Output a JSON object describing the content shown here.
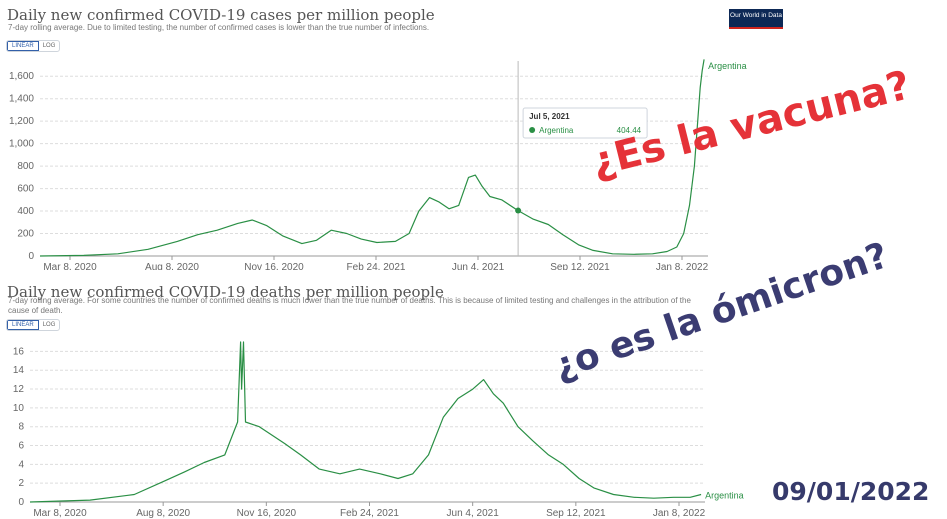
{
  "cases": {
    "title": "Daily new confirmed COVID-19 cases per million people",
    "subtitle": "7-day rolling average. Due to limited testing, the number of confirmed cases is lower than the true number of infections.",
    "scale": {
      "linear": "LINEAR",
      "log": "LOG",
      "active": "linear"
    },
    "logo": "Our World in Data",
    "series_label": "Argentina",
    "tooltip": {
      "date": "Jul 5, 2021",
      "entity": "Argentina",
      "value": "404.44"
    },
    "colors": {
      "line": "#2a8f45",
      "grid": "#dddddd",
      "axis_text": "#666666"
    }
  },
  "deaths": {
    "title": "Daily new confirmed COVID-19 deaths per million people",
    "subtitle": "7-day rolling average. For some countries the number of confirmed deaths is much lower than the true number of deaths. This is because of limited testing and challenges in the attribution of the cause of death.",
    "scale": {
      "linear": "LINEAR",
      "log": "LOG",
      "active": "linear"
    },
    "series_label": "Argentina",
    "colors": {
      "line": "#2a8f45",
      "grid": "#dddddd",
      "axis_text": "#666666"
    }
  },
  "annotations": {
    "vacuna": "¿Es la vacuna?",
    "omicron": "¿o es la ómicron?",
    "date": "09/01/2022"
  },
  "chart_data": [
    {
      "type": "line",
      "title": "Daily new confirmed COVID-19 cases per million people",
      "x_tick_labels": [
        "Mar 8, 2020",
        "Aug 8, 2020",
        "Nov 16, 2020",
        "Feb 24, 2021",
        "Jun 4, 2021",
        "Sep 12, 2021",
        "Jan 8, 2022"
      ],
      "y_ticks": [
        0,
        200,
        400,
        600,
        800,
        1000,
        1200,
        1400,
        1600
      ],
      "y_tick_labels": [
        "0",
        "200",
        "400",
        "600",
        "800",
        "1,000",
        "1,200",
        "1,400",
        "1,600"
      ],
      "ylim": [
        0,
        1700
      ],
      "xlim": [
        "2020-03-01",
        "2022-01-16"
      ],
      "grid": true,
      "series": [
        {
          "name": "Argentina",
          "x": [
            "2020-03-01",
            "2020-04-15",
            "2020-05-20",
            "2020-06-20",
            "2020-07-20",
            "2020-08-10",
            "2020-08-30",
            "2020-09-20",
            "2020-10-05",
            "2020-10-20",
            "2020-11-05",
            "2020-11-25",
            "2020-12-10",
            "2020-12-25",
            "2021-01-10",
            "2021-01-25",
            "2021-02-10",
            "2021-03-01",
            "2021-03-15",
            "2021-03-25",
            "2021-04-05",
            "2021-04-15",
            "2021-04-25",
            "2021-05-05",
            "2021-05-15",
            "2021-05-22",
            "2021-05-29",
            "2021-06-06",
            "2021-06-18",
            "2021-07-05",
            "2021-07-20",
            "2021-08-05",
            "2021-08-20",
            "2021-09-05",
            "2021-09-20",
            "2021-10-10",
            "2021-11-01",
            "2021-11-20",
            "2021-12-05",
            "2021-12-15",
            "2021-12-22",
            "2021-12-28",
            "2022-01-02",
            "2022-01-05",
            "2022-01-08",
            "2022-01-10",
            "2022-01-12"
          ],
          "y": [
            0,
            5,
            20,
            60,
            130,
            190,
            230,
            290,
            320,
            270,
            180,
            110,
            140,
            230,
            200,
            150,
            120,
            130,
            200,
            400,
            520,
            480,
            420,
            450,
            700,
            720,
            620,
            530,
            500,
            404,
            330,
            280,
            190,
            100,
            50,
            20,
            15,
            20,
            40,
            80,
            200,
            450,
            800,
            1150,
            1500,
            1650,
            1750
          ]
        }
      ]
    },
    {
      "type": "line",
      "title": "Daily new confirmed COVID-19 deaths per million people",
      "x_tick_labels": [
        "Mar 8, 2020",
        "Aug 8, 2020",
        "Nov 16, 2020",
        "Feb 24, 2021",
        "Jun 4, 2021",
        "Sep 12, 2021",
        "Jan 8, 2022"
      ],
      "y_ticks": [
        0,
        2,
        4,
        6,
        8,
        10,
        12,
        14,
        16
      ],
      "y_tick_labels": [
        "0",
        "2",
        "4",
        "6",
        "8",
        "10",
        "12",
        "14",
        "16"
      ],
      "ylim": [
        0,
        17
      ],
      "xlim": [
        "2020-03-01",
        "2022-01-16"
      ],
      "grid": true,
      "series": [
        {
          "name": "Argentina",
          "x": [
            "2020-03-01",
            "2020-05-01",
            "2020-06-15",
            "2020-07-15",
            "2020-08-05",
            "2020-08-25",
            "2020-09-15",
            "2020-09-28",
            "2020-10-01",
            "2020-10-02",
            "2020-10-04",
            "2020-10-06",
            "2020-10-20",
            "2020-11-15",
            "2020-12-01",
            "2020-12-20",
            "2021-01-10",
            "2021-01-30",
            "2021-02-20",
            "2021-03-10",
            "2021-03-25",
            "2021-04-10",
            "2021-04-25",
            "2021-05-10",
            "2021-05-25",
            "2021-06-05",
            "2021-06-15",
            "2021-06-25",
            "2021-07-10",
            "2021-07-25",
            "2021-08-10",
            "2021-08-25",
            "2021-09-10",
            "2021-09-25",
            "2021-10-15",
            "2021-11-05",
            "2021-11-25",
            "2021-12-15",
            "2022-01-01",
            "2022-01-12"
          ],
          "y": [
            0,
            0.2,
            0.8,
            2.2,
            3.2,
            4.2,
            5.0,
            8.5,
            17,
            12,
            17,
            8.5,
            8.0,
            6.2,
            5.0,
            3.5,
            3.0,
            3.5,
            3.0,
            2.5,
            3.0,
            5.0,
            9.0,
            11.0,
            12.0,
            13.0,
            11.5,
            10.5,
            8.0,
            6.5,
            5.0,
            4.0,
            2.5,
            1.5,
            0.8,
            0.5,
            0.4,
            0.5,
            0.5,
            0.8
          ]
        }
      ]
    }
  ]
}
